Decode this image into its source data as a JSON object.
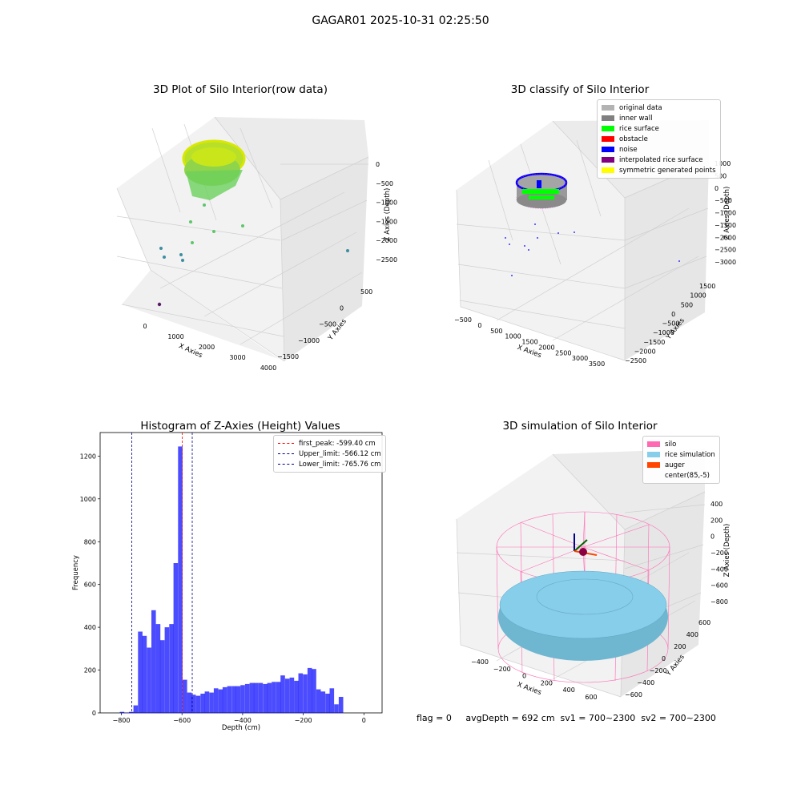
{
  "suptitle": "GAGAR01 2025-10-31 02:25:50",
  "panels": {
    "raw": {
      "title": "3D Plot of Silo Interior(row data)",
      "xlabel": "X Axies",
      "ylabel": "Y Axies",
      "zlabel": "Z Axies (Depth)",
      "xticks": [
        "0",
        "1000",
        "2000",
        "3000",
        "4000"
      ],
      "yticks": [
        "500",
        "0",
        "−500",
        "−1000",
        "−1500"
      ],
      "zticks": [
        "0",
        "−500",
        "−1000",
        "−1500",
        "−2000",
        "−2500"
      ]
    },
    "classify": {
      "title": "3D classify of Silo Interior",
      "xlabel": "X Axies",
      "ylabel": "Y Axies",
      "zlabel": "Z Axies (Depth)",
      "xticks": [
        "−500",
        "0",
        "500",
        "1000",
        "1500",
        "2000",
        "2500",
        "3000",
        "3500"
      ],
      "yticks": [
        "1500",
        "1000",
        "500",
        "0",
        "−500",
        "−1000",
        "−1500",
        "−2000",
        "−2500"
      ],
      "zticks": [
        "1000",
        "500",
        "0",
        "−500",
        "−1000",
        "−1500",
        "−2000",
        "−2500",
        "−3000"
      ],
      "legend": [
        {
          "label": "original data",
          "color": "#b3b3b3"
        },
        {
          "label": "inner wall",
          "color": "#808080"
        },
        {
          "label": "rice surface",
          "color": "#00ff00"
        },
        {
          "label": "obstacle",
          "color": "#ff0000"
        },
        {
          "label": "noise",
          "color": "#0000ff"
        },
        {
          "label": "interpolated rice surface",
          "color": "#800080"
        },
        {
          "label": "symmetric generated points",
          "color": "#ffff00"
        }
      ]
    },
    "hist": {
      "title": "Histogram of Z-Axies (Height) Values",
      "xlabel": "Depth (cm)",
      "ylabel": "Frequency",
      "legend": [
        {
          "label": "first_peak: -599.40 cm",
          "color": "#ff0000"
        },
        {
          "label": "Upper_limit: -566.12 cm",
          "color": "#00008b"
        },
        {
          "label": "Lower_limit: -765.76 cm",
          "color": "#00008b"
        }
      ]
    },
    "sim": {
      "title": "3D simulation of Silo Interior",
      "xlabel": "X Axies",
      "ylabel": "Y Axies",
      "zlabel": "Z Axies (Depth)",
      "xticks": [
        "−400",
        "−200",
        "0",
        "200",
        "400",
        "600"
      ],
      "yticks": [
        "600",
        "400",
        "200",
        "0",
        "−200",
        "−400",
        "−600"
      ],
      "zticks": [
        "400",
        "200",
        "0",
        "−200",
        "−400",
        "−600",
        "−800"
      ],
      "legend": [
        {
          "label": "silo",
          "color": "#ff69b4"
        },
        {
          "label": "rice simulation",
          "color": "#87ceeb"
        },
        {
          "label": "auger",
          "color": "#ff4500"
        },
        {
          "label": "center(85,-5)",
          "color": ""
        }
      ]
    }
  },
  "status": "flag = 0     avgDepth = 692 cm  sv1 = 700~2300  sv2 = 700~2300",
  "chart_data": [
    {
      "type": "bar",
      "title": "Histogram of Z-Axies (Height) Values",
      "xlabel": "Depth (cm)",
      "ylabel": "Frequency",
      "xlim": [
        -870,
        60
      ],
      "ylim": [
        0,
        1310
      ],
      "xticks": [
        -800,
        -600,
        -400,
        -200,
        0
      ],
      "yticks": [
        0,
        200,
        400,
        600,
        800,
        1000,
        1200
      ],
      "bin_width": 14.7,
      "bin_starts": [
        -805,
        -790,
        -775,
        -760,
        -745,
        -731,
        -716,
        -701,
        -686,
        -672,
        -657,
        -642,
        -628,
        -613,
        -598,
        -583,
        -569,
        -554,
        -539,
        -525,
        -510,
        -495,
        -480,
        -466,
        -451,
        -436,
        -422,
        -407,
        -392,
        -377,
        -363,
        -348,
        -333,
        -319,
        -304,
        -289,
        -275,
        -260,
        -245,
        -230,
        -216,
        -201,
        -186,
        -172,
        -157,
        -142,
        -127,
        -113,
        -98,
        -83,
        -69,
        -54,
        -39,
        -24,
        -10
      ],
      "values": [
        5,
        2,
        5,
        35,
        380,
        360,
        305,
        480,
        415,
        340,
        400,
        415,
        700,
        1245,
        155,
        95,
        85,
        80,
        90,
        100,
        95,
        115,
        110,
        120,
        125,
        125,
        125,
        130,
        135,
        140,
        140,
        140,
        135,
        140,
        145,
        145,
        175,
        160,
        165,
        150,
        185,
        180,
        210,
        205,
        110,
        100,
        90,
        115,
        40,
        75,
        0,
        0,
        0,
        0,
        0
      ],
      "lines": [
        {
          "name": "first_peak",
          "x": -599.4,
          "color": "#ff0000"
        },
        {
          "name": "Upper_limit",
          "x": -566.12,
          "color": "#00008b"
        },
        {
          "name": "Lower_limit",
          "x": -765.76,
          "color": "#00008b"
        }
      ]
    }
  ]
}
